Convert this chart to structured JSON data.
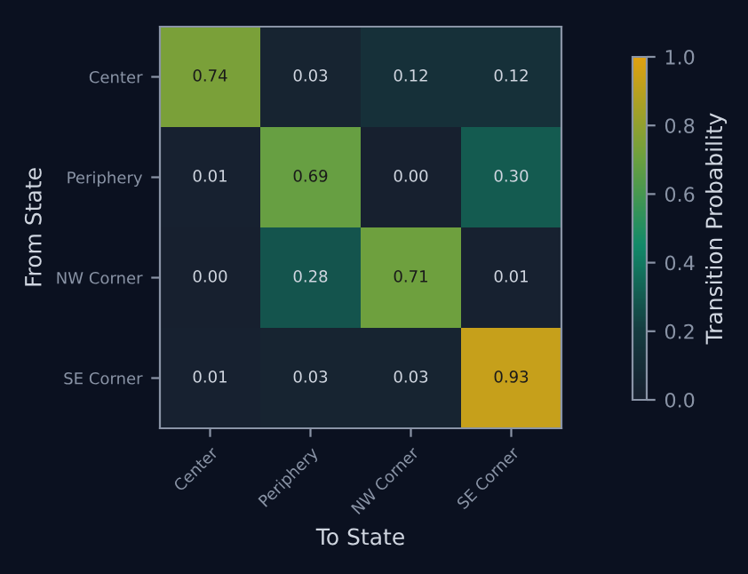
{
  "chart_data": {
    "type": "heatmap",
    "xlabel": "To State",
    "ylabel": "From State",
    "clabel": "Transition Probability",
    "categories": [
      "Center",
      "Periphery",
      "NW Corner",
      "SE Corner"
    ],
    "y_categories": [
      "Center",
      "Periphery",
      "NW Corner",
      "SE Corner"
    ],
    "cells": [
      [
        0.74,
        0.03,
        0.12,
        0.12
      ],
      [
        0.01,
        0.69,
        0.0,
        0.3
      ],
      [
        0.0,
        0.28,
        0.71,
        0.01
      ],
      [
        0.01,
        0.03,
        0.03,
        0.93
      ]
    ],
    "cell_labels": [
      [
        "0.74",
        "0.03",
        "0.12",
        "0.12"
      ],
      [
        "0.01",
        "0.69",
        "0.00",
        "0.30"
      ],
      [
        "0.00",
        "0.28",
        "0.71",
        "0.01"
      ],
      [
        "0.01",
        "0.03",
        "0.03",
        "0.93"
      ]
    ],
    "clim": [
      0.0,
      1.0
    ],
    "cticks": [
      {
        "value": 0,
        "label": "0.0"
      },
      0.2,
      0.4,
      0.6,
      0.8,
      {
        "value": 1,
        "label": "1.0"
      }
    ]
  }
}
